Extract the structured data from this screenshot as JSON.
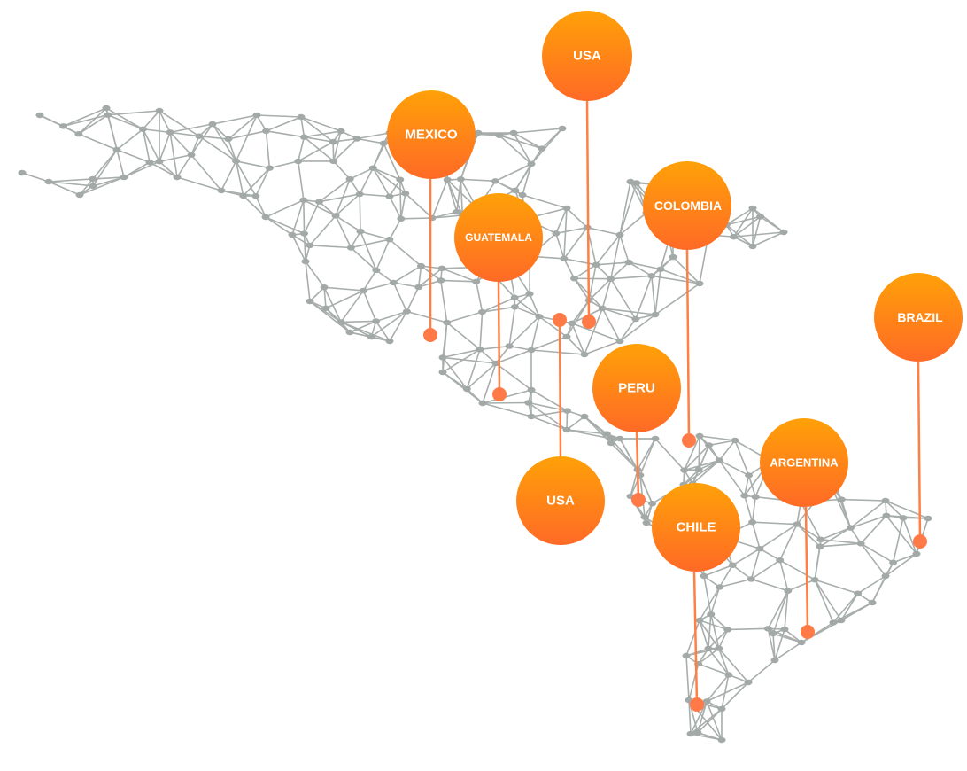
{
  "colors": {
    "network_line": "#a7aeac",
    "network_node": "#a2a9a7",
    "pin_orange_top": "#ffa108",
    "pin_orange_bottom": "#ff6a26",
    "pin_line": "#ff7f45",
    "pin_dot": "#ff7a46"
  },
  "pins": [
    {
      "label": "USA"
    },
    {
      "label": "MEXICO"
    },
    {
      "label": "GUATEMALA"
    },
    {
      "label": "COLOMBIA"
    },
    {
      "label": "BRAZIL"
    },
    {
      "label": "PERU"
    },
    {
      "label": "USA"
    },
    {
      "label": "ARGENTINA"
    },
    {
      "label": "CHILE"
    }
  ]
}
